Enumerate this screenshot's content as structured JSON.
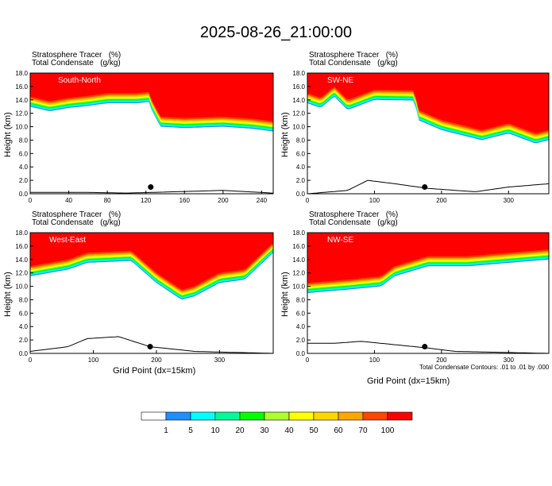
{
  "title": "2025-08-26_21:00:00",
  "panel_header": {
    "line1": "Stratosphere Tracer   (%)",
    "line2": "Total Condensate   (g/kg)"
  },
  "y_axis_label": "Height (km)",
  "x_axis_label": "Grid Point (dx=15km)",
  "contour_note": "Total Condensate Contours: .01 to .01 by .000",
  "colorbar": {
    "labels": [
      "1",
      "5",
      "10",
      "20",
      "30",
      "40",
      "50",
      "60",
      "70",
      "100"
    ],
    "colors": [
      "#ffffff",
      "#1e90ff",
      "#00ffff",
      "#00fa9a",
      "#00ff00",
      "#adff2f",
      "#ffff00",
      "#ffd700",
      "#ffa500",
      "#ff4500",
      "#ff0000"
    ]
  },
  "chart_data": [
    {
      "type": "heatmap",
      "name": "South-North",
      "xlim": [
        0,
        252
      ],
      "ylim": [
        0,
        18
      ],
      "xticks": [
        0,
        40,
        80,
        120,
        160,
        200,
        240
      ],
      "yticks": [
        0.0,
        2.0,
        4.0,
        6.0,
        8.0,
        10.0,
        12.0,
        14.0,
        16.0,
        18.0
      ],
      "tropopause_km": [
        [
          0,
          14.5
        ],
        [
          20,
          13.8
        ],
        [
          40,
          14.3
        ],
        [
          60,
          14.6
        ],
        [
          80,
          15.0
        ],
        [
          110,
          15.0
        ],
        [
          124,
          15.2
        ],
        [
          126,
          14.0
        ],
        [
          135,
          11.5
        ],
        [
          160,
          11.3
        ],
        [
          200,
          11.5
        ],
        [
          230,
          11.2
        ],
        [
          252,
          10.8
        ]
      ],
      "terrain_km": [
        [
          0,
          0.2
        ],
        [
          60,
          0.2
        ],
        [
          100,
          0.1
        ],
        [
          150,
          0.3
        ],
        [
          200,
          0.5
        ],
        [
          252,
          0.1
        ]
      ],
      "marker_x": 125
    },
    {
      "type": "heatmap",
      "name": "SW-NE",
      "xlim": [
        0,
        360
      ],
      "ylim": [
        0,
        18
      ],
      "xticks": [
        0,
        100,
        200,
        300
      ],
      "yticks": [
        0.0,
        2.0,
        4.0,
        6.0,
        8.0,
        10.0,
        12.0,
        14.0,
        16.0,
        18.0
      ],
      "tropopause_km": [
        [
          0,
          15.0
        ],
        [
          20,
          14.3
        ],
        [
          40,
          16.0
        ],
        [
          60,
          14.0
        ],
        [
          100,
          15.5
        ],
        [
          160,
          15.4
        ],
        [
          165,
          12.5
        ],
        [
          200,
          11.0
        ],
        [
          260,
          9.5
        ],
        [
          300,
          10.5
        ],
        [
          340,
          9.0
        ],
        [
          360,
          9.5
        ]
      ],
      "terrain_km": [
        [
          0,
          0.0
        ],
        [
          60,
          0.5
        ],
        [
          90,
          2.0
        ],
        [
          130,
          1.5
        ],
        [
          180,
          0.8
        ],
        [
          250,
          0.3
        ],
        [
          300,
          1.0
        ],
        [
          360,
          1.5
        ]
      ],
      "marker_x": 175
    },
    {
      "type": "heatmap",
      "name": "West-East",
      "xlim": [
        0,
        385
      ],
      "ylim": [
        0,
        18
      ],
      "xticks": [
        0,
        100,
        200,
        300
      ],
      "yticks": [
        0.0,
        2.0,
        4.0,
        6.0,
        8.0,
        10.0,
        12.0,
        14.0,
        16.0,
        18.0
      ],
      "tropopause_km": [
        [
          0,
          13.0
        ],
        [
          30,
          13.5
        ],
        [
          60,
          14.0
        ],
        [
          90,
          15.0
        ],
        [
          160,
          15.3
        ],
        [
          200,
          12.0
        ],
        [
          240,
          9.5
        ],
        [
          260,
          10.0
        ],
        [
          300,
          12.0
        ],
        [
          340,
          12.5
        ],
        [
          385,
          16.5
        ]
      ],
      "terrain_km": [
        [
          0,
          0.3
        ],
        [
          60,
          1.0
        ],
        [
          90,
          2.2
        ],
        [
          140,
          2.5
        ],
        [
          190,
          1.0
        ],
        [
          260,
          0.3
        ],
        [
          300,
          0.2
        ],
        [
          385,
          0.0
        ]
      ],
      "marker_x": 190
    },
    {
      "type": "heatmap",
      "name": "NW-SE",
      "xlim": [
        0,
        360
      ],
      "ylim": [
        0,
        18
      ],
      "xticks": [
        0,
        100,
        200,
        300
      ],
      "yticks": [
        0.0,
        2.0,
        4.0,
        6.0,
        8.0,
        10.0,
        12.0,
        14.0,
        16.0,
        18.0
      ],
      "tropopause_km": [
        [
          0,
          10.5
        ],
        [
          60,
          11.0
        ],
        [
          110,
          11.5
        ],
        [
          130,
          13.0
        ],
        [
          180,
          14.5
        ],
        [
          240,
          14.5
        ],
        [
          300,
          15.0
        ],
        [
          360,
          15.5
        ]
      ],
      "terrain_km": [
        [
          0,
          1.5
        ],
        [
          40,
          1.5
        ],
        [
          80,
          1.8
        ],
        [
          140,
          1.2
        ],
        [
          180,
          0.8
        ],
        [
          220,
          0.3
        ],
        [
          360,
          0.0
        ]
      ],
      "marker_x": 175
    }
  ]
}
